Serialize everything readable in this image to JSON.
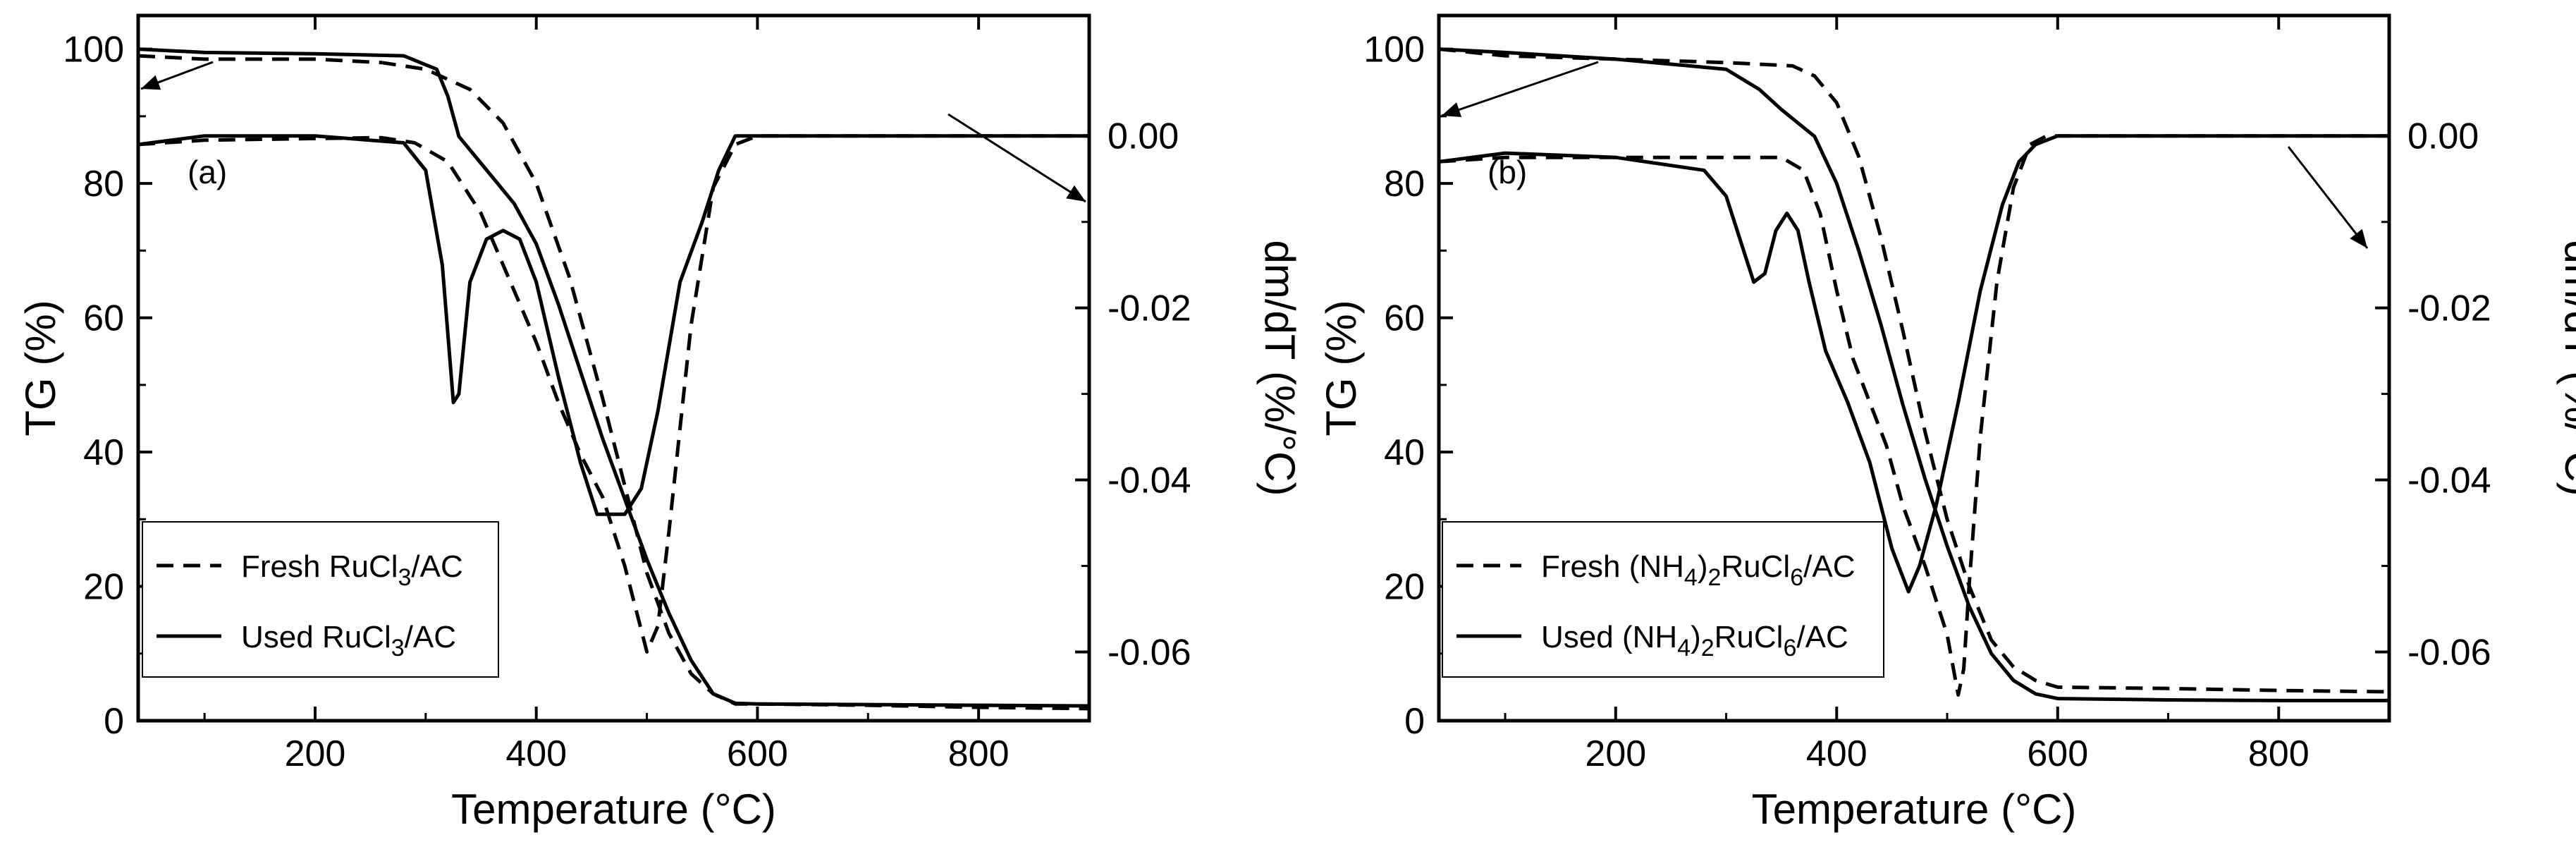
{
  "chart_data": [
    {
      "type": "line",
      "panel_label": "(a)",
      "xlabel_text": "Temperature (",
      "xlabel_unit": "°C",
      "xlabel_close": ")",
      "ylabel": "TG (%)",
      "y2label": "dm/dT (%/°C)",
      "xlim": [
        40,
        900
      ],
      "ylim": [
        0,
        105
      ],
      "y2lim": [
        -0.068,
        0.014
      ],
      "xticks": [
        "200",
        "400",
        "600",
        "800"
      ],
      "yticks": [
        "0",
        "20",
        "40",
        "60",
        "80",
        "100"
      ],
      "y2ticks": [
        "0.00",
        "-0.02",
        "-0.04",
        "-0.06"
      ],
      "legend": [
        {
          "style": "dashed",
          "prefix": "Fresh RuCl",
          "sub": "3",
          "suffix": "/AC"
        },
        {
          "style": "solid",
          "prefix": "Used RuCl",
          "sub": "3",
          "suffix": "/AC"
        }
      ],
      "series": [
        {
          "name": "Fresh RuCl3/AC TG",
          "style": "dashed",
          "axis": "left",
          "x": [
            40,
            100,
            200,
            260,
            300,
            340,
            370,
            400,
            430,
            460,
            480,
            500,
            520,
            540,
            560,
            580,
            600,
            700,
            800,
            900
          ],
          "y": [
            99,
            98.5,
            98.5,
            98,
            97,
            94,
            89,
            80,
            66,
            48,
            35,
            22,
            13,
            7,
            4,
            2.5,
            2.5,
            2.3,
            2,
            1.8
          ]
        },
        {
          "name": "Used RuCl3/AC TG",
          "style": "solid",
          "axis": "left",
          "x": [
            40,
            100,
            200,
            280,
            310,
            320,
            330,
            345,
            360,
            380,
            400,
            420,
            440,
            460,
            480,
            500,
            520,
            540,
            560,
            580,
            600,
            700,
            800,
            900
          ],
          "y": [
            100,
            99.5,
            99.3,
            99,
            97,
            93,
            87,
            84,
            81,
            77,
            71,
            62,
            52,
            42,
            33,
            24,
            16,
            9,
            4,
            2.6,
            2.5,
            2.4,
            2.3,
            2.2
          ]
        },
        {
          "name": "Fresh RuCl3/AC DTG",
          "style": "dashed",
          "axis": "right",
          "x": [
            40,
            100,
            200,
            260,
            290,
            320,
            350,
            380,
            400,
            420,
            440,
            460,
            480,
            500,
            510,
            520,
            540,
            560,
            580,
            600,
            700,
            800,
            900
          ],
          "y": [
            -0.001,
            -0.0005,
            -0.0003,
            -0.0002,
            -0.0008,
            -0.003,
            -0.009,
            -0.018,
            -0.024,
            -0.031,
            -0.037,
            -0.042,
            -0.05,
            -0.06,
            -0.057,
            -0.046,
            -0.022,
            -0.006,
            -0.001,
            0.0,
            0.0,
            0.0,
            0.0
          ]
        },
        {
          "name": "Used RuCl3/AC DTG",
          "style": "solid",
          "axis": "right",
          "x": [
            40,
            100,
            200,
            280,
            300,
            315,
            325,
            330,
            340,
            355,
            370,
            385,
            400,
            420,
            440,
            455,
            465,
            480,
            495,
            510,
            530,
            550,
            565,
            580,
            600,
            700,
            800,
            900
          ],
          "y": [
            -0.001,
            0.0,
            0.0,
            -0.0008,
            -0.004,
            -0.015,
            -0.031,
            -0.03,
            -0.017,
            -0.012,
            -0.011,
            -0.012,
            -0.017,
            -0.028,
            -0.038,
            -0.044,
            -0.044,
            -0.044,
            -0.041,
            -0.032,
            -0.017,
            -0.01,
            -0.004,
            0.0,
            0.0,
            0.0,
            0.0,
            0.0
          ]
        }
      ]
    },
    {
      "type": "line",
      "panel_label": "(b)",
      "xlabel_text": "Temperature (",
      "xlabel_unit": "°C",
      "xlabel_close": ")",
      "ylabel": "TG (%)",
      "y2label": "dm/dT (%/°C)",
      "xlim": [
        40,
        900
      ],
      "ylim": [
        0,
        105
      ],
      "y2lim": [
        -0.068,
        0.014
      ],
      "xticks": [
        "200",
        "400",
        "600",
        "800"
      ],
      "yticks": [
        "0",
        "20",
        "40",
        "60",
        "80",
        "100"
      ],
      "y2ticks": [
        "0.00",
        "-0.02",
        "-0.04",
        "-0.06"
      ],
      "legend": [
        {
          "style": "dashed",
          "prefix": "Fresh (NH",
          "sub1": "4",
          "mid": ")",
          "sub2": "2",
          "mid2": "RuCl",
          "sub3": "6",
          "suffix": "/AC"
        },
        {
          "style": "solid",
          "prefix": "Used (NH",
          "sub1": "4",
          "mid": ")",
          "sub2": "2",
          "mid2": "RuCl",
          "sub3": "6",
          "suffix": "/AC"
        }
      ],
      "series": [
        {
          "name": "Fresh (NH4)2RuCl6/AC TG",
          "style": "dashed",
          "axis": "left",
          "x": [
            40,
            100,
            200,
            300,
            360,
            380,
            400,
            420,
            440,
            460,
            480,
            500,
            520,
            540,
            560,
            580,
            600,
            700,
            800,
            900
          ],
          "y": [
            100,
            99,
            98.5,
            98,
            97.5,
            96,
            92,
            84,
            72,
            58,
            43,
            30,
            20,
            12,
            8,
            6,
            5,
            4.8,
            4.5,
            4.3
          ]
        },
        {
          "name": "Used (NH4)2RuCl6/AC TG",
          "style": "solid",
          "axis": "left",
          "x": [
            40,
            100,
            200,
            300,
            330,
            350,
            380,
            400,
            420,
            440,
            460,
            480,
            500,
            520,
            540,
            560,
            580,
            600,
            700,
            800,
            900
          ],
          "y": [
            100,
            99.5,
            98.5,
            97,
            94,
            91,
            87,
            80,
            70,
            59,
            47,
            36,
            26,
            17,
            10,
            6,
            4,
            3.3,
            3.1,
            3.0,
            3.0
          ]
        },
        {
          "name": "Fresh (NH4)2RuCl6/AC DTG",
          "style": "dashed",
          "axis": "right",
          "x": [
            40,
            100,
            200,
            300,
            350,
            370,
            385,
            400,
            415,
            430,
            445,
            460,
            480,
            500,
            510,
            515,
            520,
            530,
            545,
            560,
            575,
            590,
            600,
            700,
            800,
            900
          ],
          "y": [
            -0.003,
            -0.0025,
            -0.0025,
            -0.0025,
            -0.0025,
            -0.004,
            -0.009,
            -0.018,
            -0.026,
            -0.031,
            -0.036,
            -0.043,
            -0.05,
            -0.058,
            -0.065,
            -0.062,
            -0.052,
            -0.035,
            -0.017,
            -0.006,
            -0.001,
            0.0,
            0.0,
            0.0,
            0.0,
            0.0
          ]
        },
        {
          "name": "Used (NH4)2RuCl6/AC DTG",
          "style": "solid",
          "axis": "right",
          "x": [
            40,
            100,
            200,
            280,
            300,
            315,
            325,
            335,
            345,
            355,
            365,
            375,
            390,
            410,
            430,
            450,
            465,
            475,
            490,
            510,
            530,
            550,
            565,
            580,
            600,
            700,
            800,
            900
          ],
          "y": [
            -0.003,
            -0.002,
            -0.0025,
            -0.004,
            -0.007,
            -0.013,
            -0.017,
            -0.016,
            -0.011,
            -0.009,
            -0.011,
            -0.017,
            -0.025,
            -0.031,
            -0.038,
            -0.048,
            -0.053,
            -0.05,
            -0.043,
            -0.031,
            -0.018,
            -0.008,
            -0.003,
            -0.001,
            0.0,
            0.0,
            0.0,
            0.0
          ]
        }
      ]
    }
  ]
}
